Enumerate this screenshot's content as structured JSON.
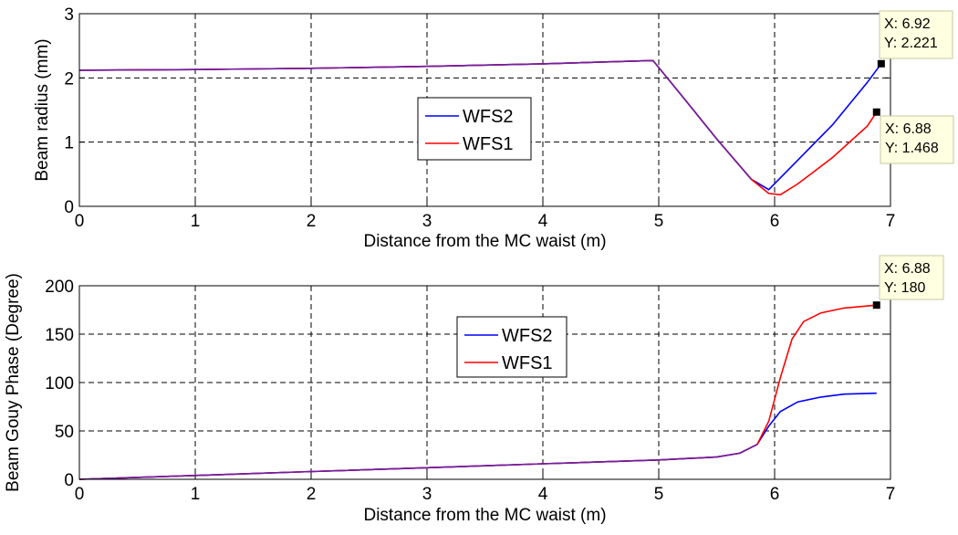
{
  "chart_data": [
    {
      "type": "line",
      "xlabel": "Distance from the MC waist (m)",
      "ylabel": "Beam radius (mm)",
      "xlim": [
        0,
        7
      ],
      "ylim": [
        0,
        3
      ],
      "xticks": [
        "0",
        "1",
        "2",
        "3",
        "4",
        "5",
        "6",
        "7"
      ],
      "yticks": [
        "0",
        "1",
        "2",
        "3"
      ],
      "grid": true,
      "legend_position": "center",
      "colors": {
        "WFS2": "#0000ff",
        "WFS1": "#ff0000"
      },
      "series": [
        {
          "name": "WFS2",
          "x": [
            0,
            1,
            2,
            3,
            4,
            4.95,
            5.2,
            5.5,
            5.8,
            5.95,
            6.2,
            6.5,
            6.8,
            6.92
          ],
          "y": [
            2.12,
            2.13,
            2.15,
            2.18,
            2.22,
            2.27,
            1.72,
            1.05,
            0.42,
            0.26,
            0.72,
            1.27,
            1.93,
            2.221
          ]
        },
        {
          "name": "WFS1",
          "x": [
            0,
            1,
            2,
            3,
            4,
            4.95,
            5.2,
            5.5,
            5.8,
            5.95,
            6.05,
            6.2,
            6.5,
            6.8,
            6.88
          ],
          "y": [
            2.12,
            2.13,
            2.15,
            2.18,
            2.22,
            2.27,
            1.72,
            1.05,
            0.42,
            0.2,
            0.18,
            0.35,
            0.76,
            1.25,
            1.468
          ]
        }
      ],
      "datatips": [
        {
          "series": "WFS2",
          "x_label": "X: 6.92",
          "y_label": "Y: 2.221",
          "x": 6.92,
          "y": 2.221
        },
        {
          "series": "WFS1",
          "x_label": "X: 6.88",
          "y_label": "Y: 1.468",
          "x": 6.88,
          "y": 1.468
        }
      ]
    },
    {
      "type": "line",
      "xlabel": "Distance from the MC waist (m)",
      "ylabel": "Beam Gouy Phase (Degree)",
      "xlim": [
        0,
        7
      ],
      "ylim": [
        0,
        200
      ],
      "xticks": [
        "0",
        "1",
        "2",
        "3",
        "4",
        "5",
        "6",
        "7"
      ],
      "yticks": [
        "0",
        "50",
        "100",
        "150",
        "200"
      ],
      "grid": true,
      "legend_position": "center",
      "colors": {
        "WFS2": "#0000ff",
        "WFS1": "#ff0000"
      },
      "series": [
        {
          "name": "WFS2",
          "x": [
            0,
            1,
            2,
            3,
            4,
            5,
            5.5,
            5.7,
            5.85,
            5.95,
            6.05,
            6.2,
            6.4,
            6.6,
            6.88
          ],
          "y": [
            0,
            4,
            8,
            12,
            16,
            20,
            23,
            27,
            36,
            55,
            70,
            80,
            85,
            88,
            89
          ]
        },
        {
          "name": "WFS1",
          "x": [
            0,
            1,
            2,
            3,
            4,
            5,
            5.5,
            5.7,
            5.85,
            5.95,
            6.05,
            6.15,
            6.25,
            6.4,
            6.6,
            6.88
          ],
          "y": [
            0,
            4,
            8,
            12,
            16,
            20,
            23,
            27,
            36,
            60,
            105,
            145,
            163,
            172,
            177,
            180
          ]
        }
      ],
      "datatips": [
        {
          "series": "WFS1",
          "x_label": "X: 6.88",
          "y_label": "Y: 180",
          "x": 6.88,
          "y": 180
        }
      ]
    }
  ]
}
